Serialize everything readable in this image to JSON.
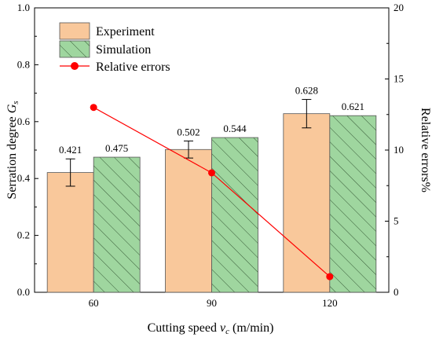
{
  "chart_data": {
    "type": "bar",
    "categories": [
      "60",
      "90",
      "120"
    ],
    "series": [
      {
        "name": "Experiment",
        "values": [
          0.421,
          0.502,
          0.628
        ],
        "error": [
          0.048,
          0.03,
          0.05
        ],
        "color": "#f9c89b",
        "axis": "left"
      },
      {
        "name": "Simulation",
        "values": [
          0.475,
          0.544,
          0.621
        ],
        "color": "#9fd69f",
        "hatch": "diagonal",
        "axis": "left"
      },
      {
        "name": "Relative errors",
        "values": [
          13.0,
          8.4,
          1.1
        ],
        "type": "line",
        "color": "#ff0000",
        "axis": "right"
      }
    ],
    "data_labels": {
      "experiment": [
        "0.421",
        "0.502",
        "0.628"
      ],
      "simulation": [
        "0.475",
        "0.544",
        "0.621"
      ]
    },
    "xlabel_prefix": "Cutting speed ",
    "xlabel_var": "v",
    "xlabel_sub": "c",
    "xlabel_suffix": " (m/min)",
    "ylabel_prefix": "Serration degree ",
    "ylabel_var": "G",
    "ylabel_sub": "s",
    "y2label": "Relative errors%",
    "ylim": [
      0,
      1.0
    ],
    "y2lim": [
      0,
      20
    ],
    "yticks": [
      "0.0",
      "0.2",
      "0.4",
      "0.6",
      "0.8",
      "1.0"
    ],
    "y2ticks": [
      "0",
      "5",
      "10",
      "15",
      "20"
    ],
    "legend_position": "top-left",
    "grid": false
  }
}
